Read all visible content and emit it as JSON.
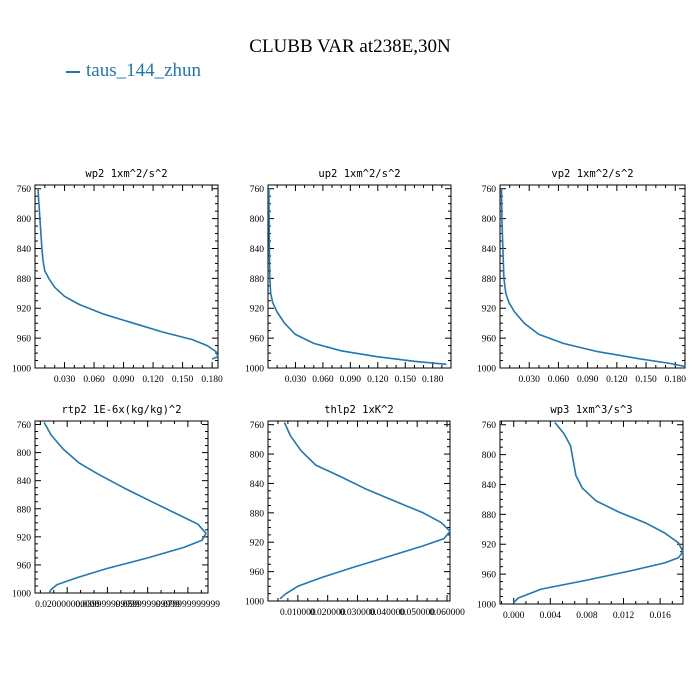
{
  "figure": {
    "title": "CLUBB VAR at238E,30N",
    "legend": [
      {
        "label": "taus_144_zhun",
        "color": "#1f77b4"
      }
    ],
    "line_color": "#1f77b4"
  },
  "chart_data": [
    {
      "type": "line",
      "title": "wp2  1xm^2/s^2",
      "xlabel": "",
      "ylabel": "",
      "xlim": [
        0,
        0.186
      ],
      "ylim": [
        1000,
        755
      ],
      "y_inverted": true,
      "xticks": [
        0.03,
        0.06,
        0.09,
        0.12,
        0.15,
        0.18
      ],
      "xtick_labels": [
        "0.030",
        "0.060",
        "0.090",
        "0.120",
        "0.150",
        "0.180"
      ],
      "yticks": [
        760,
        800,
        840,
        880,
        920,
        960,
        1000
      ],
      "series": [
        {
          "x": [
            0.003,
            0.004,
            0.005,
            0.006,
            0.007,
            0.008,
            0.01,
            0.014,
            0.02,
            0.03,
            0.045,
            0.07,
            0.1,
            0.13,
            0.16,
            0.175,
            0.184,
            0.186,
            0.18
          ],
          "y": [
            760,
            780,
            800,
            820,
            840,
            855,
            870,
            880,
            892,
            904,
            915,
            928,
            940,
            952,
            962,
            970,
            978,
            985,
            988
          ]
        }
      ]
    },
    {
      "type": "line",
      "title": "up2  1xm^2/s^2",
      "xlabel": "",
      "ylabel": "",
      "xlim": [
        0,
        0.2
      ],
      "ylim": [
        1000,
        755
      ],
      "y_inverted": true,
      "xticks": [
        0.03,
        0.06,
        0.09,
        0.12,
        0.15,
        0.18
      ],
      "xtick_labels": [
        "0.030",
        "0.060",
        "0.090",
        "0.120",
        "0.150",
        "0.180"
      ],
      "yticks": [
        760,
        800,
        840,
        880,
        920,
        960,
        1000
      ],
      "series": [
        {
          "x": [
            0.001,
            0.0012,
            0.0015,
            0.002,
            0.003,
            0.005,
            0.01,
            0.018,
            0.03,
            0.05,
            0.08,
            0.12,
            0.16,
            0.195
          ],
          "y": [
            760,
            800,
            840,
            880,
            900,
            912,
            925,
            940,
            955,
            967,
            977,
            985,
            991,
            995
          ]
        }
      ]
    },
    {
      "type": "line",
      "title": "vp2  1xm^2/s^2",
      "xlabel": "",
      "ylabel": "",
      "xlim": [
        0,
        0.19
      ],
      "ylim": [
        1000,
        755
      ],
      "y_inverted": true,
      "xticks": [
        0.03,
        0.06,
        0.09,
        0.12,
        0.15,
        0.18
      ],
      "xtick_labels": [
        "0.030",
        "0.060",
        "0.090",
        "0.120",
        "0.150",
        "0.180"
      ],
      "yticks": [
        760,
        800,
        840,
        880,
        920,
        960,
        1000
      ],
      "series": [
        {
          "x": [
            0.0015,
            0.002,
            0.003,
            0.004,
            0.006,
            0.009,
            0.015,
            0.025,
            0.04,
            0.065,
            0.1,
            0.14,
            0.175,
            0.19
          ],
          "y": [
            760,
            800,
            840,
            880,
            900,
            912,
            925,
            940,
            955,
            967,
            978,
            987,
            994,
            998
          ]
        }
      ]
    },
    {
      "type": "line",
      "title": "rtp2  1E-6x(kg/kg)^2",
      "xlabel": "",
      "ylabel": "",
      "xlim": [
        0.004,
        0.09
      ],
      "ylim": [
        1000,
        755
      ],
      "y_inverted": true,
      "xticks": [
        0.02,
        0.04,
        0.06,
        0.08
      ],
      "xtick_labels": [
        "0.020000000000",
        "0.039999999999",
        "0.059999999999",
        "0.079999999999"
      ],
      "yticks": [
        760,
        800,
        840,
        880,
        920,
        960,
        1000
      ],
      "series": [
        {
          "x": [
            0.0085,
            0.012,
            0.018,
            0.026,
            0.035,
            0.048,
            0.062,
            0.075,
            0.085,
            0.089,
            0.087,
            0.078,
            0.06,
            0.04,
            0.025,
            0.015,
            0.012,
            0.011
          ],
          "y": [
            757,
            775,
            795,
            815,
            830,
            850,
            870,
            888,
            902,
            915,
            925,
            935,
            950,
            965,
            978,
            988,
            995,
            1000
          ]
        }
      ]
    },
    {
      "type": "line",
      "title": "thlp2  1xK^2",
      "xlabel": "",
      "ylabel": "",
      "xlim": [
        0,
        0.061
      ],
      "ylim": [
        1000,
        755
      ],
      "y_inverted": true,
      "xticks": [
        0.01,
        0.02,
        0.03,
        0.04,
        0.05,
        0.06
      ],
      "xtick_labels": [
        "0.010000",
        "0.020000",
        "0.030000",
        "0.040000",
        "0.050000",
        "0.060000"
      ],
      "yticks": [
        760,
        800,
        840,
        880,
        920,
        960,
        1000
      ],
      "series": [
        {
          "x": [
            0.0055,
            0.0075,
            0.011,
            0.016,
            0.024,
            0.033,
            0.043,
            0.052,
            0.058,
            0.061,
            0.059,
            0.052,
            0.04,
            0.028,
            0.018,
            0.01,
            0.006,
            0.004
          ],
          "y": [
            757,
            775,
            795,
            815,
            830,
            848,
            865,
            880,
            893,
            905,
            915,
            925,
            940,
            955,
            968,
            980,
            990,
            997
          ]
        }
      ]
    },
    {
      "type": "line",
      "title": "wp3  1xm^3/s^3",
      "xlabel": "",
      "ylabel": "",
      "xlim": [
        -0.0015,
        0.0185
      ],
      "ylim": [
        1000,
        755
      ],
      "y_inverted": true,
      "xticks": [
        0.0,
        0.004,
        0.008,
        0.012,
        0.016
      ],
      "xtick_labels": [
        "0.000",
        "0.004",
        "0.008",
        "0.012",
        "0.016"
      ],
      "yticks": [
        760,
        800,
        840,
        880,
        920,
        960,
        1000
      ],
      "series": [
        {
          "x": [
            0.0045,
            0.0055,
            0.0062,
            0.0065,
            0.0068,
            0.0075,
            0.009,
            0.0115,
            0.0145,
            0.0165,
            0.018,
            0.0185,
            0.018,
            0.0165,
            0.013,
            0.008,
            0.003,
            0.0005,
            0.0
          ],
          "y": [
            757,
            772,
            788,
            808,
            828,
            845,
            862,
            877,
            892,
            905,
            918,
            930,
            938,
            945,
            955,
            968,
            980,
            992,
            998
          ]
        }
      ]
    }
  ]
}
